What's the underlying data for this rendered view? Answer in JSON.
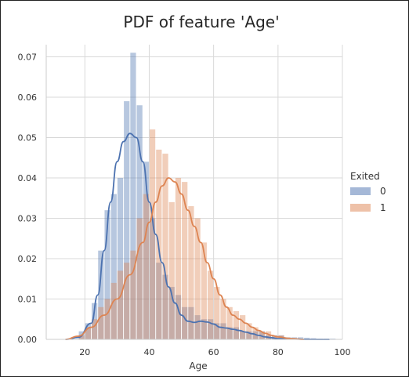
{
  "chart_data": {
    "type": "bar",
    "title": "PDF of feature 'Age'",
    "xlabel": "Age",
    "ylabel": "",
    "xlim": [
      8,
      100
    ],
    "ylim": [
      0,
      0.073
    ],
    "xticks": [
      20,
      40,
      60,
      80,
      100
    ],
    "yticks": [
      0.0,
      0.01,
      0.02,
      0.03,
      0.04,
      0.05,
      0.06,
      0.07
    ],
    "ytick_labels": [
      "0.00",
      "0.01",
      "0.02",
      "0.03",
      "0.04",
      "0.05",
      "0.06",
      "0.07"
    ],
    "grid": true,
    "legend": {
      "title": "Exited",
      "placement": "right"
    },
    "series": [
      {
        "name": "0",
        "color": "#4c72b0",
        "bar_alpha": 0.4,
        "bins": [
          18,
          20,
          22,
          24,
          26,
          28,
          30,
          32,
          34,
          36,
          38,
          40,
          42,
          44,
          46,
          48,
          50,
          52,
          54,
          56,
          58,
          60,
          62,
          64,
          66,
          68,
          70,
          72,
          74,
          76,
          78,
          80,
          82,
          84,
          86,
          88,
          90,
          92,
          94,
          96
        ],
        "values": [
          0.002,
          0.004,
          0.009,
          0.022,
          0.032,
          0.036,
          0.04,
          0.059,
          0.071,
          0.058,
          0.044,
          0.03,
          0.019,
          0.016,
          0.013,
          0.011,
          0.008,
          0.008,
          0.006,
          0.005,
          0.005,
          0.004,
          0.004,
          0.003,
          0.003,
          0.002,
          0.002,
          0.002,
          0.002,
          0.001,
          0.001,
          0.001,
          0.0005,
          0.0005,
          0.0005,
          0.0004,
          0.0003,
          0.0002,
          0.0002,
          0.0002
        ],
        "kde_x": [
          14,
          18,
          22,
          24,
          26,
          28,
          30,
          32,
          34,
          36,
          38,
          40,
          42,
          44,
          46,
          48,
          50,
          52,
          54,
          56,
          58,
          60,
          62,
          64,
          66,
          68,
          70,
          72,
          74,
          76,
          78,
          80,
          84,
          90,
          96
        ],
        "kde_y": [
          0.0,
          0.0005,
          0.004,
          0.011,
          0.022,
          0.034,
          0.044,
          0.049,
          0.051,
          0.05,
          0.044,
          0.034,
          0.026,
          0.019,
          0.013,
          0.009,
          0.006,
          0.0045,
          0.0042,
          0.0045,
          0.0043,
          0.0038,
          0.003,
          0.0028,
          0.0025,
          0.0022,
          0.0018,
          0.0014,
          0.001,
          0.0006,
          0.0004,
          0.0002,
          0.0001,
          0.0,
          0.0
        ]
      },
      {
        "name": "1",
        "color": "#dd8452",
        "bar_alpha": 0.4,
        "bins": [
          18,
          20,
          22,
          24,
          26,
          28,
          30,
          32,
          34,
          36,
          38,
          40,
          42,
          44,
          46,
          48,
          50,
          52,
          54,
          56,
          58,
          60,
          62,
          64,
          66,
          68,
          70,
          72,
          74,
          76,
          78,
          80,
          82,
          84
        ],
        "values": [
          0.001,
          0.003,
          0.005,
          0.008,
          0.01,
          0.014,
          0.017,
          0.019,
          0.022,
          0.03,
          0.036,
          0.052,
          0.047,
          0.046,
          0.034,
          0.04,
          0.039,
          0.033,
          0.03,
          0.024,
          0.017,
          0.013,
          0.01,
          0.008,
          0.007,
          0.006,
          0.004,
          0.003,
          0.002,
          0.002,
          0.001,
          0.001,
          0.0005,
          0.0003
        ],
        "kde_x": [
          14,
          18,
          22,
          26,
          30,
          34,
          38,
          40,
          42,
          44,
          46,
          48,
          50,
          52,
          54,
          56,
          58,
          60,
          62,
          64,
          66,
          68,
          70,
          72,
          74,
          76,
          78,
          80,
          84,
          88
        ],
        "kde_y": [
          0.0,
          0.0008,
          0.003,
          0.006,
          0.01,
          0.016,
          0.024,
          0.029,
          0.034,
          0.038,
          0.04,
          0.039,
          0.036,
          0.032,
          0.028,
          0.024,
          0.019,
          0.015,
          0.011,
          0.008,
          0.006,
          0.005,
          0.004,
          0.003,
          0.0022,
          0.0015,
          0.001,
          0.0006,
          0.0002,
          0.0
        ]
      }
    ]
  }
}
